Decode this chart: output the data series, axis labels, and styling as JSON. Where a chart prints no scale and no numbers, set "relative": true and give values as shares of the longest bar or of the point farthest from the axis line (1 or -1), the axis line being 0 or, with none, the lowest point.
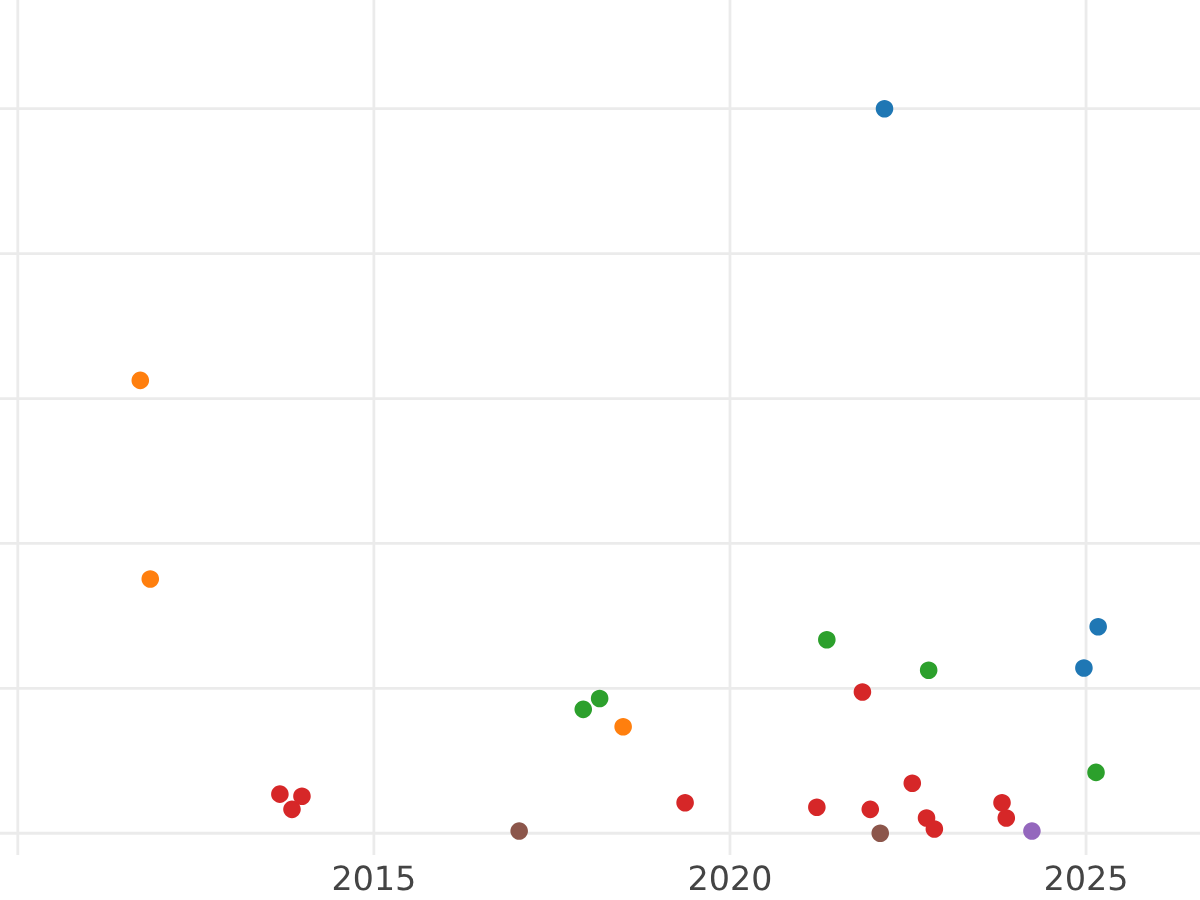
{
  "chart_data": {
    "type": "scatter",
    "relative": true,
    "grid": true,
    "marker": "circle",
    "xlim": [
      2009.75,
      2026.6
    ],
    "xticks": [
      {
        "value": 2010,
        "label": null
      },
      2015,
      2020,
      2025
    ],
    "series": [
      {
        "color": "#1f77b4",
        "x": [
          2022.17,
          2025.17,
          2024.97
        ],
        "values": [
          1,
          0.285,
          0.228
        ]
      },
      {
        "color": "#ff7f0e",
        "x": [
          2011.72,
          2011.86,
          2018.5
        ],
        "values": [
          0.625,
          0.351,
          0.147
        ]
      },
      {
        "color": "#2ca02c",
        "x": [
          2017.94,
          2018.17,
          2021.36,
          2022.79,
          2025.14
        ],
        "values": [
          0.171,
          0.186,
          0.267,
          0.225,
          0.084
        ]
      },
      {
        "color": "#d62728",
        "x": [
          2013.68,
          2013.85,
          2013.99,
          2019.37,
          2021.86,
          2021.22,
          2021.97,
          2022.56,
          2022.76,
          2022.87,
          2023.82,
          2023.88
        ],
        "values": [
          0.054,
          0.033,
          0.051,
          0.042,
          0.195,
          0.036,
          0.033,
          0.069,
          0.021,
          0.006,
          0.042,
          0.021
        ]
      },
      {
        "color": "#9467bd",
        "x": [
          2024.24
        ],
        "values": [
          0.003
        ]
      },
      {
        "color": "#8c564b",
        "x": [
          2017.04,
          2022.11
        ],
        "values": [
          0.003,
          0
        ]
      }
    ]
  }
}
